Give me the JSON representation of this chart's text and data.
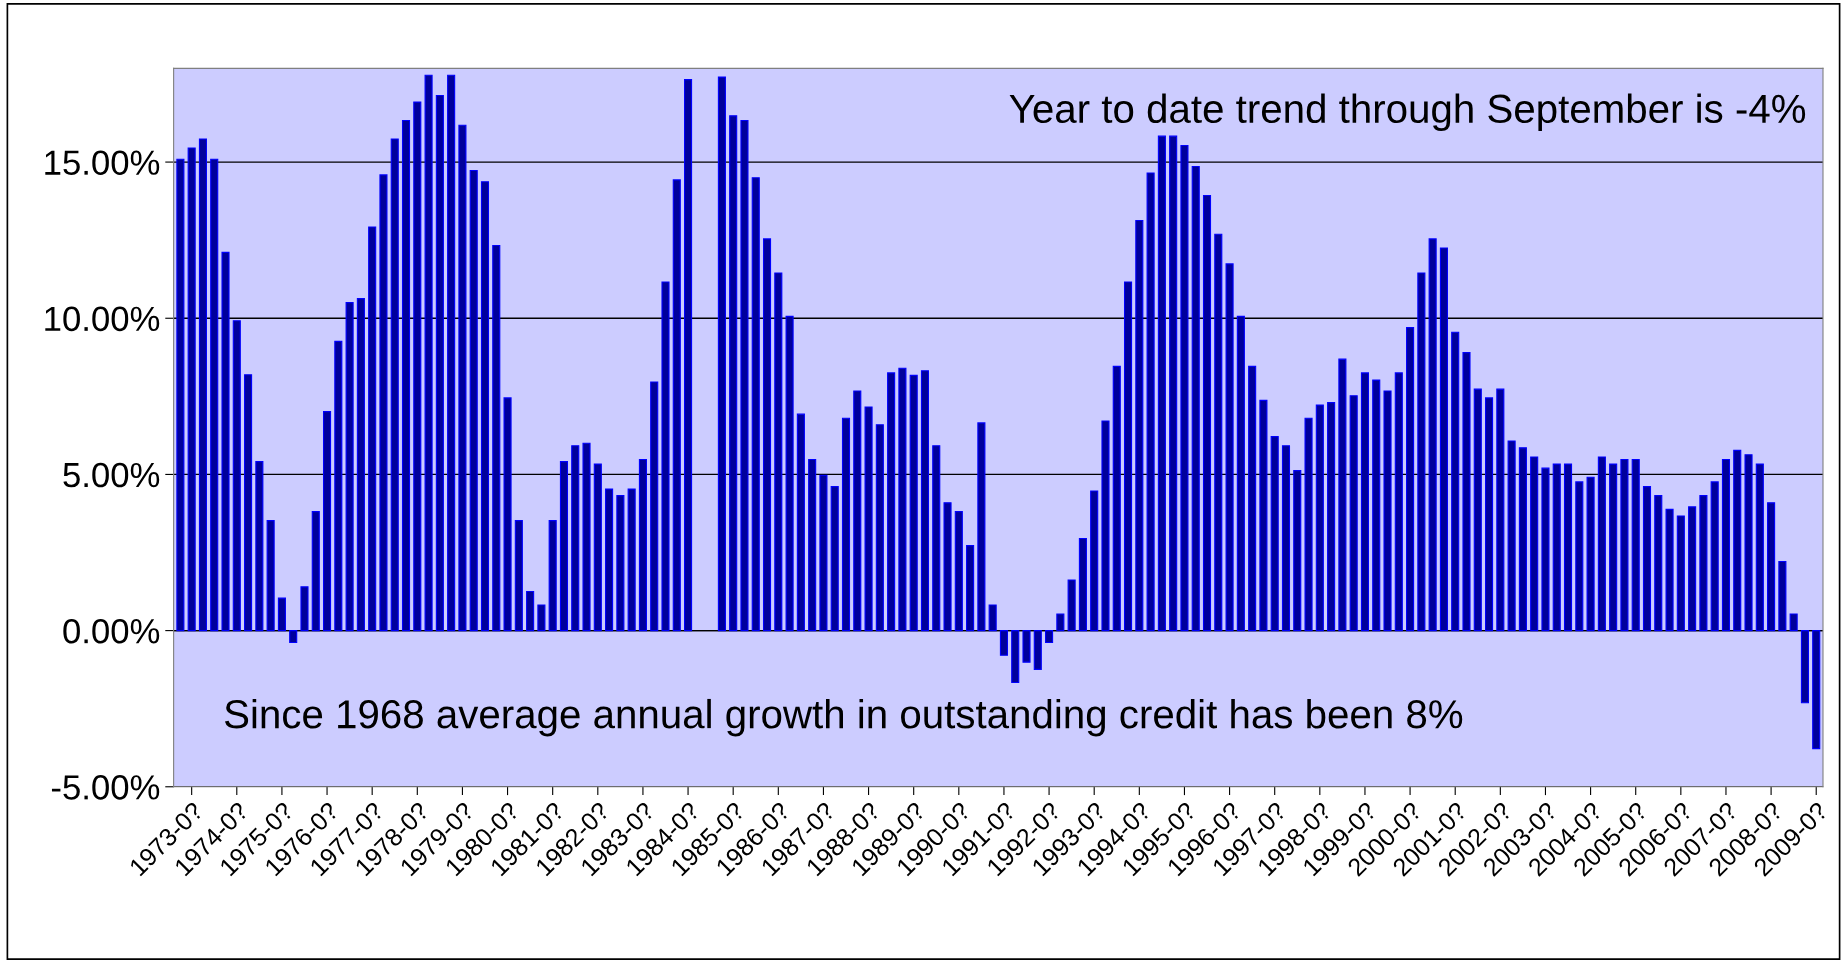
{
  "chart_data": {
    "type": "bar",
    "categories": [
      null,
      "1973-0?",
      null,
      null,
      null,
      "1974-0?",
      null,
      null,
      null,
      "1975-0?",
      null,
      null,
      null,
      "1976-0?",
      null,
      null,
      null,
      "1977-0?",
      null,
      null,
      null,
      "1978-0?",
      null,
      null,
      null,
      "1979-0?",
      null,
      null,
      null,
      "1980-0?",
      null,
      null,
      null,
      "1981-0?",
      null,
      null,
      null,
      "1982-0?",
      null,
      null,
      null,
      "1983-0?",
      null,
      null,
      null,
      "1984-0?",
      null,
      null,
      null,
      "1985-0?",
      null,
      null,
      null,
      "1986-0?",
      null,
      null,
      null,
      "1987-0?",
      null,
      null,
      null,
      "1988-0?",
      null,
      null,
      null,
      "1989-0?",
      null,
      null,
      null,
      "1990-0?",
      null,
      null,
      null,
      "1991-0?",
      null,
      null,
      null,
      "1992-0?",
      null,
      null,
      null,
      "1993-0?",
      null,
      null,
      null,
      "1994-0?",
      null,
      null,
      null,
      "1995-0?",
      null,
      null,
      null,
      "1996-0?",
      null,
      null,
      null,
      "1997-0?",
      null,
      null,
      null,
      "1998-0?",
      null,
      null,
      null,
      "1999-0?",
      null,
      null,
      null,
      "2000-0?",
      null,
      null,
      null,
      "2001-0?",
      null,
      null,
      null,
      "2002-0?",
      null,
      null,
      null,
      "2003-0?",
      null,
      null,
      null,
      "2004-0?",
      null,
      null,
      null,
      "2005-0?",
      null,
      null,
      null,
      "2006-0?",
      null,
      null,
      null,
      "2007-0?",
      null,
      null,
      null,
      "2008-0?",
      null,
      null,
      null,
      "2009-0?"
    ],
    "values": [
      15.09,
      15.45,
      15.74,
      15.09,
      12.11,
      9.92,
      8.19,
      5.41,
      3.52,
      1.04,
      -0.38,
      1.4,
      3.81,
      7.01,
      9.26,
      10.5,
      10.63,
      12.92,
      14.59,
      15.74,
      16.33,
      16.92,
      17.78,
      17.13,
      17.78,
      16.18,
      14.73,
      14.37,
      12.33,
      7.45,
      3.52,
      1.25,
      0.82,
      3.52,
      5.41,
      5.92,
      6.0,
      5.33,
      4.53,
      4.32,
      4.53,
      5.48,
      7.96,
      11.16,
      14.43,
      17.64,
      null,
      null,
      17.72,
      16.48,
      16.33,
      14.5,
      12.54,
      11.45,
      10.06,
      6.93,
      5.48,
      4.97,
      4.61,
      6.8,
      7.67,
      7.16,
      6.59,
      8.25,
      8.4,
      8.17,
      8.32,
      5.92,
      4.09,
      3.81,
      2.72,
      6.65,
      0.82,
      -0.79,
      -1.66,
      -1.01,
      -1.24,
      -0.38,
      0.53,
      1.62,
      2.95,
      4.47,
      6.71,
      8.46,
      11.16,
      13.13,
      14.65,
      15.83,
      15.83,
      15.53,
      14.86,
      13.93,
      12.69,
      11.74,
      10.06,
      8.46,
      7.37,
      6.21,
      5.92,
      5.12,
      6.8,
      7.22,
      7.3,
      8.69,
      7.52,
      8.25,
      8.02,
      7.67,
      8.25,
      9.7,
      11.45,
      12.54,
      12.25,
      9.55,
      8.9,
      7.73,
      7.45,
      7.73,
      6.07,
      5.85,
      5.56,
      5.2,
      5.33,
      5.33,
      4.76,
      4.91,
      5.56,
      5.33,
      5.48,
      5.48,
      4.61,
      4.32,
      3.88,
      3.67,
      3.96,
      4.32,
      4.76,
      5.48,
      5.77,
      5.63,
      5.33,
      4.09,
      2.21,
      0.53,
      -2.31,
      -3.78
    ],
    "color": "#00009c",
    "ylim": [
      -5,
      18
    ],
    "yticks": [
      {
        "value": -5,
        "label": "-5.00%"
      },
      {
        "value": 0,
        "label": "0.00%"
      },
      {
        "value": 5,
        "label": "5.00%"
      },
      {
        "value": 10,
        "label": "10.00%"
      },
      {
        "value": 15,
        "label": "15.00%"
      }
    ],
    "grid": "y",
    "annotations": [
      "Year to date trend through September is -4%",
      "Since 1968 average annual growth in outstanding credit has been 8%"
    ]
  }
}
